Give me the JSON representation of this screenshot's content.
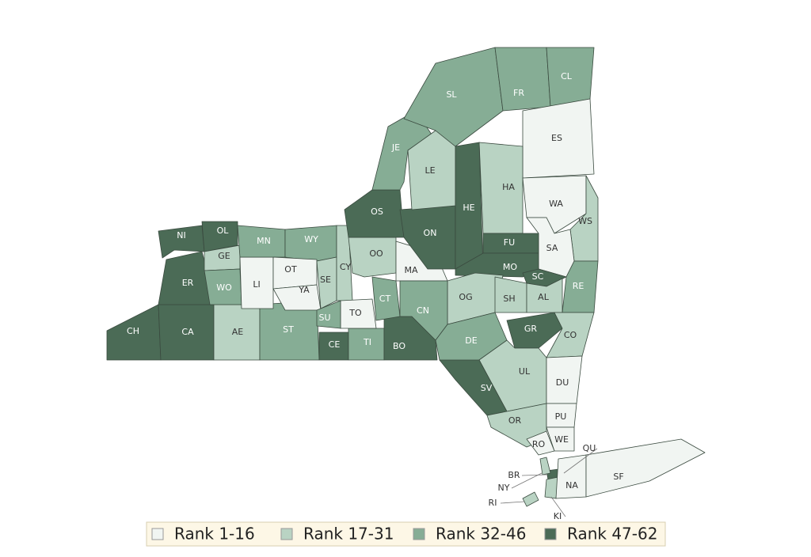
{
  "map": {
    "type": "choropleth",
    "classes": [
      {
        "label": "Rank 1-16",
        "color": "#f1f5f2"
      },
      {
        "label": "Rank 17-31",
        "color": "#b9d3c3"
      },
      {
        "label": "Rank 32-46",
        "color": "#86ad95"
      },
      {
        "label": "Rank 47-62",
        "color": "#4b6b56"
      }
    ],
    "counties": [
      {
        "label": "CH",
        "class": 3
      },
      {
        "label": "CA",
        "class": 3
      },
      {
        "label": "AE",
        "class": 1
      },
      {
        "label": "ST",
        "class": 2
      },
      {
        "label": "CE",
        "class": 3
      },
      {
        "label": "TI",
        "class": 2
      },
      {
        "label": "BO",
        "class": 3
      },
      {
        "label": "ER",
        "class": 3
      },
      {
        "label": "NI",
        "class": 3
      },
      {
        "label": "OL",
        "class": 3
      },
      {
        "label": "GE",
        "class": 1
      },
      {
        "label": "WO",
        "class": 2
      },
      {
        "label": "LI",
        "class": 0
      },
      {
        "label": "MN",
        "class": 2
      },
      {
        "label": "WY",
        "class": 2
      },
      {
        "label": "OT",
        "class": 0
      },
      {
        "label": "YA",
        "class": 0
      },
      {
        "label": "SE",
        "class": 1
      },
      {
        "label": "CY",
        "class": 1
      },
      {
        "label": "OO",
        "class": 1
      },
      {
        "label": "MA",
        "class": 0
      },
      {
        "label": "OS",
        "class": 3
      },
      {
        "label": "ON",
        "class": 3
      },
      {
        "label": "JE",
        "class": 2
      },
      {
        "label": "LE",
        "class": 1
      },
      {
        "label": "SL",
        "class": 2
      },
      {
        "label": "FR",
        "class": 2
      },
      {
        "label": "CL",
        "class": 2
      },
      {
        "label": "ES",
        "class": 0
      },
      {
        "label": "HA",
        "class": 1
      },
      {
        "label": "HE",
        "class": 3
      },
      {
        "label": "WA",
        "class": 0
      },
      {
        "label": "WS",
        "class": 1
      },
      {
        "label": "SA",
        "class": 0
      },
      {
        "label": "FU",
        "class": 3
      },
      {
        "label": "MO",
        "class": 3
      },
      {
        "label": "SC",
        "class": 3
      },
      {
        "label": "OG",
        "class": 1
      },
      {
        "label": "SH",
        "class": 1
      },
      {
        "label": "AL",
        "class": 1
      },
      {
        "label": "RE",
        "class": 2
      },
      {
        "label": "CT",
        "class": 2
      },
      {
        "label": "CN",
        "class": 2
      },
      {
        "label": "TO",
        "class": 0
      },
      {
        "label": "SU",
        "class": 2
      },
      {
        "label": "DE",
        "class": 2
      },
      {
        "label": "GR",
        "class": 3
      },
      {
        "label": "CO",
        "class": 1
      },
      {
        "label": "UL",
        "class": 1
      },
      {
        "label": "DU",
        "class": 0
      },
      {
        "label": "SV",
        "class": 3
      },
      {
        "label": "OR",
        "class": 1
      },
      {
        "label": "PU",
        "class": 0
      },
      {
        "label": "WE",
        "class": 0
      },
      {
        "label": "RO",
        "class": 0
      },
      {
        "label": "BR",
        "class": 3
      },
      {
        "label": "NY",
        "class": 1
      },
      {
        "label": "RI",
        "class": 1
      },
      {
        "label": "QU",
        "class": 0
      },
      {
        "label": "KI",
        "class": 1
      },
      {
        "label": "NA",
        "class": 0
      },
      {
        "label": "SF",
        "class": 0
      }
    ]
  }
}
